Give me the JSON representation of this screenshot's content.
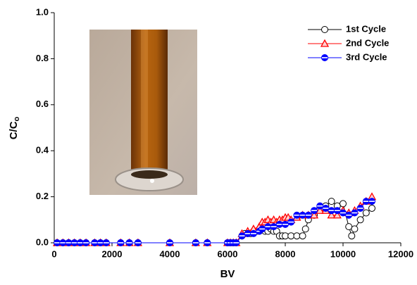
{
  "chart_data": {
    "type": "line",
    "x_label": "BV",
    "y_label": {
      "main": "C/C",
      "sub": "o"
    },
    "xlim": [
      0,
      12000
    ],
    "xticks": [
      0,
      2000,
      4000,
      6000,
      8000,
      10000,
      12000
    ],
    "ylim": [
      0,
      1.0
    ],
    "yticks": [
      {
        "value": 0,
        "label": "0.0"
      },
      {
        "value": 0.2,
        "label": "0.2"
      },
      {
        "value": 0.4,
        "label": "0.4"
      },
      {
        "value": 0.6,
        "label": "0.6"
      },
      {
        "value": 0.8,
        "label": "0.8"
      },
      {
        "value": 1.0,
        "label": "1.0"
      }
    ],
    "legend": "upper right",
    "series": [
      {
        "name": "1st Cycle",
        "color": "#000000",
        "marker": "circle-open",
        "x": [
          100,
          300,
          500,
          700,
          900,
          1100,
          1400,
          1600,
          1800,
          2300,
          2600,
          2900,
          4000,
          4900,
          5300,
          6000,
          6100,
          6200,
          6300,
          6500,
          6600,
          6700,
          6800,
          6900,
          7000,
          7100,
          7200,
          7300,
          7400,
          7500,
          7600,
          7700,
          7800,
          7900,
          8000,
          8200,
          8400,
          8600,
          8700,
          8800,
          9000,
          9200,
          9400,
          9600,
          9800,
          10000,
          10200,
          10300,
          10400,
          10600,
          10800,
          11000
        ],
        "values": [
          0,
          0,
          0,
          0,
          0,
          0,
          0,
          0,
          0,
          0,
          0,
          0,
          0,
          0,
          0,
          0,
          0,
          0,
          0,
          0.03,
          0.04,
          0.04,
          0.04,
          0.05,
          0.05,
          0.05,
          0.06,
          0.05,
          0.05,
          0.06,
          0.05,
          0.05,
          0.03,
          0.03,
          0.03,
          0.03,
          0.03,
          0.03,
          0.06,
          0.1,
          0.12,
          0.15,
          0.16,
          0.18,
          0.16,
          0.17,
          0.07,
          0.03,
          0.06,
          0.1,
          0.13,
          0.15
        ]
      },
      {
        "name": "2nd Cycle",
        "color": "#ff0000",
        "marker": "triangle",
        "x": [
          100,
          300,
          500,
          700,
          900,
          1100,
          1400,
          1600,
          1800,
          2300,
          2600,
          2900,
          4000,
          4900,
          5300,
          6000,
          6100,
          6200,
          6300,
          6500,
          6700,
          6900,
          7100,
          7200,
          7300,
          7400,
          7500,
          7600,
          7700,
          7800,
          7900,
          8000,
          8100,
          8200,
          8400,
          8600,
          8800,
          9000,
          9200,
          9400,
          9600,
          9800,
          10000,
          10200,
          10400,
          10600,
          10800,
          11000
        ],
        "values": [
          0,
          0,
          0,
          0,
          0,
          0,
          0,
          0,
          0,
          0,
          0,
          0,
          0,
          0,
          0,
          0,
          0,
          0,
          0,
          0.04,
          0.05,
          0.06,
          0.07,
          0.09,
          0.09,
          0.1,
          0.09,
          0.1,
          0.09,
          0.1,
          0.1,
          0.11,
          0.11,
          0.1,
          0.11,
          0.12,
          0.12,
          0.12,
          0.14,
          0.14,
          0.12,
          0.12,
          0.14,
          0.13,
          0.14,
          0.16,
          0.18,
          0.2
        ]
      },
      {
        "name": "3rd Cycle",
        "color": "#0000ff",
        "marker": "circle-half",
        "x": [
          100,
          300,
          500,
          700,
          900,
          1100,
          1400,
          1600,
          1800,
          2300,
          2600,
          2900,
          4000,
          4900,
          5300,
          6000,
          6100,
          6200,
          6300,
          6500,
          6700,
          6900,
          7100,
          7200,
          7400,
          7600,
          7800,
          8000,
          8200,
          8400,
          8600,
          8800,
          9000,
          9200,
          9400,
          9600,
          9800,
          10000,
          10200,
          10400,
          10600,
          10800,
          11000
        ],
        "values": [
          0,
          0,
          0,
          0,
          0,
          0,
          0,
          0,
          0,
          0,
          0,
          0,
          0,
          0,
          0,
          0,
          0,
          0,
          0,
          0.03,
          0.04,
          0.04,
          0.05,
          0.06,
          0.07,
          0.07,
          0.08,
          0.08,
          0.09,
          0.12,
          0.12,
          0.12,
          0.14,
          0.16,
          0.15,
          0.14,
          0.14,
          0.13,
          0.12,
          0.13,
          0.15,
          0.18,
          0.18
        ]
      }
    ]
  }
}
